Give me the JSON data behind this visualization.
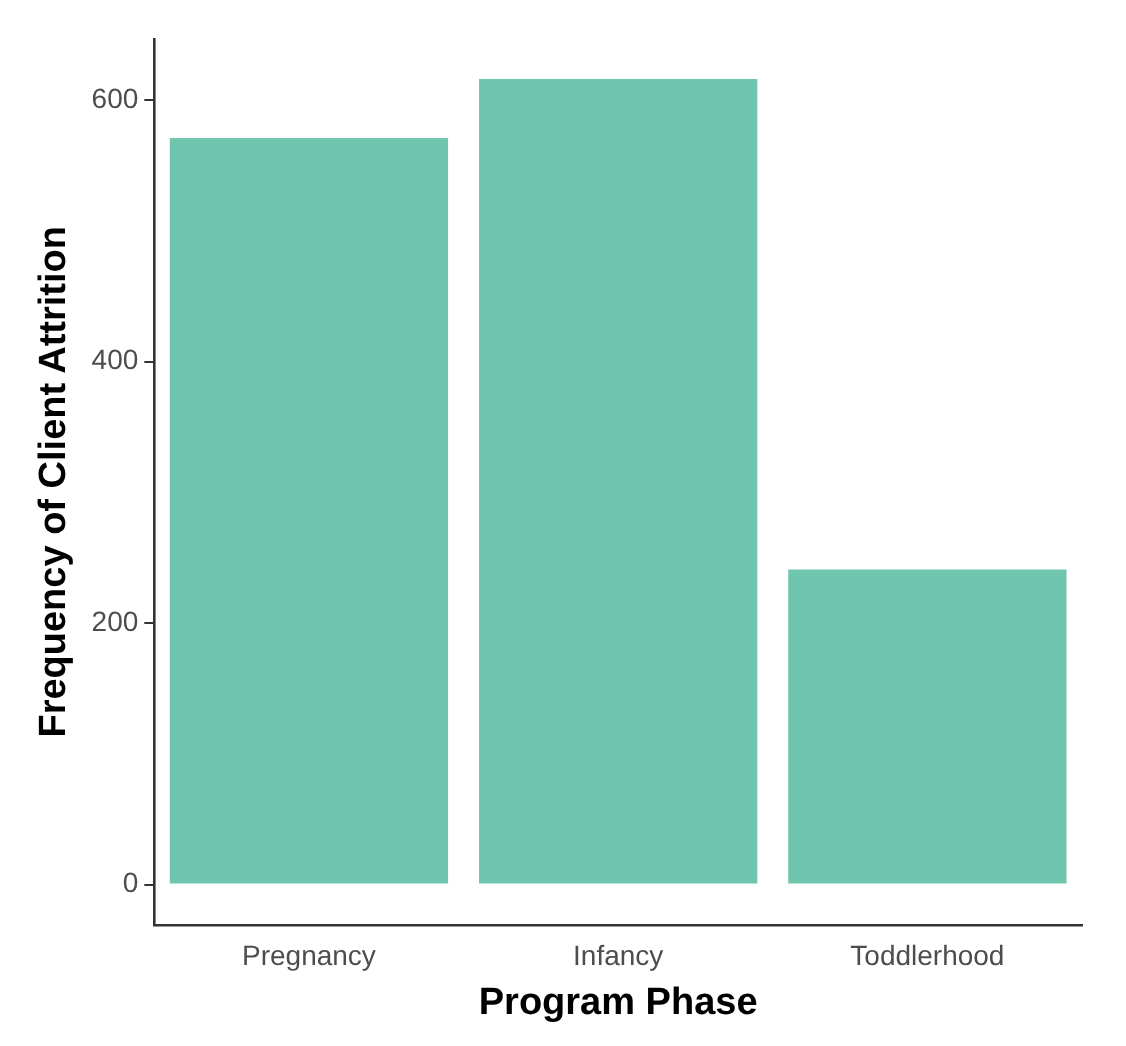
{
  "chart_data": {
    "type": "bar",
    "xlabel": "Program Phase",
    "ylabel": "Frequency of Client Attrition",
    "categories": [
      "Pregnancy",
      "Infancy",
      "Toddlerhood"
    ],
    "values": [
      571,
      616,
      241
    ],
    "color": "#6fc5ad",
    "ylim": [
      -30.8,
      646.8
    ],
    "yticks": [
      0,
      200,
      400,
      600
    ],
    "grid": false,
    "legend": false
  }
}
